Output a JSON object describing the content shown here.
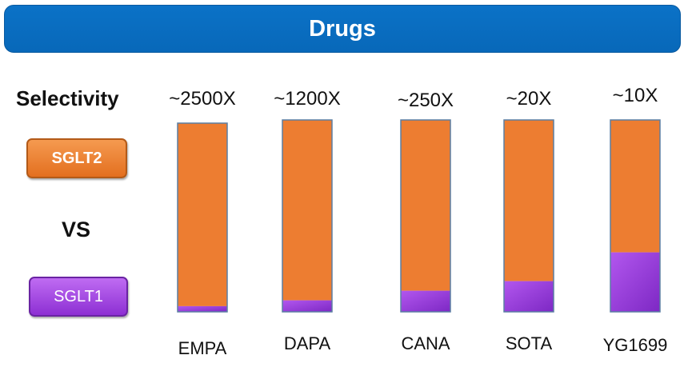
{
  "header": {
    "title": "Drugs"
  },
  "legend": {
    "title": "Selectivity",
    "sglt2_label": "SGLT2",
    "vs_label": "VS",
    "sglt1_label": "SGLT1"
  },
  "colors": {
    "sglt2": "#ED7D31",
    "sglt1": "#A94CE6",
    "banner": "#0A6BBE",
    "bar_border": "#5B7FA3"
  },
  "chart_data": {
    "type": "bar",
    "stacked": true,
    "categories": [
      "EMPA",
      "DAPA",
      "CANA",
      "SOTA",
      "YG1699"
    ],
    "annotations": [
      "~2500X",
      "~1200X",
      "~250X",
      "~20X",
      "~10X"
    ],
    "series": [
      {
        "name": "SGLT1",
        "values": [
          0.03,
          0.06,
          0.11,
          0.16,
          0.31
        ]
      },
      {
        "name": "SGLT2",
        "values": [
          0.97,
          0.94,
          0.89,
          0.84,
          0.69
        ]
      }
    ],
    "ylim": [
      0,
      1
    ]
  }
}
